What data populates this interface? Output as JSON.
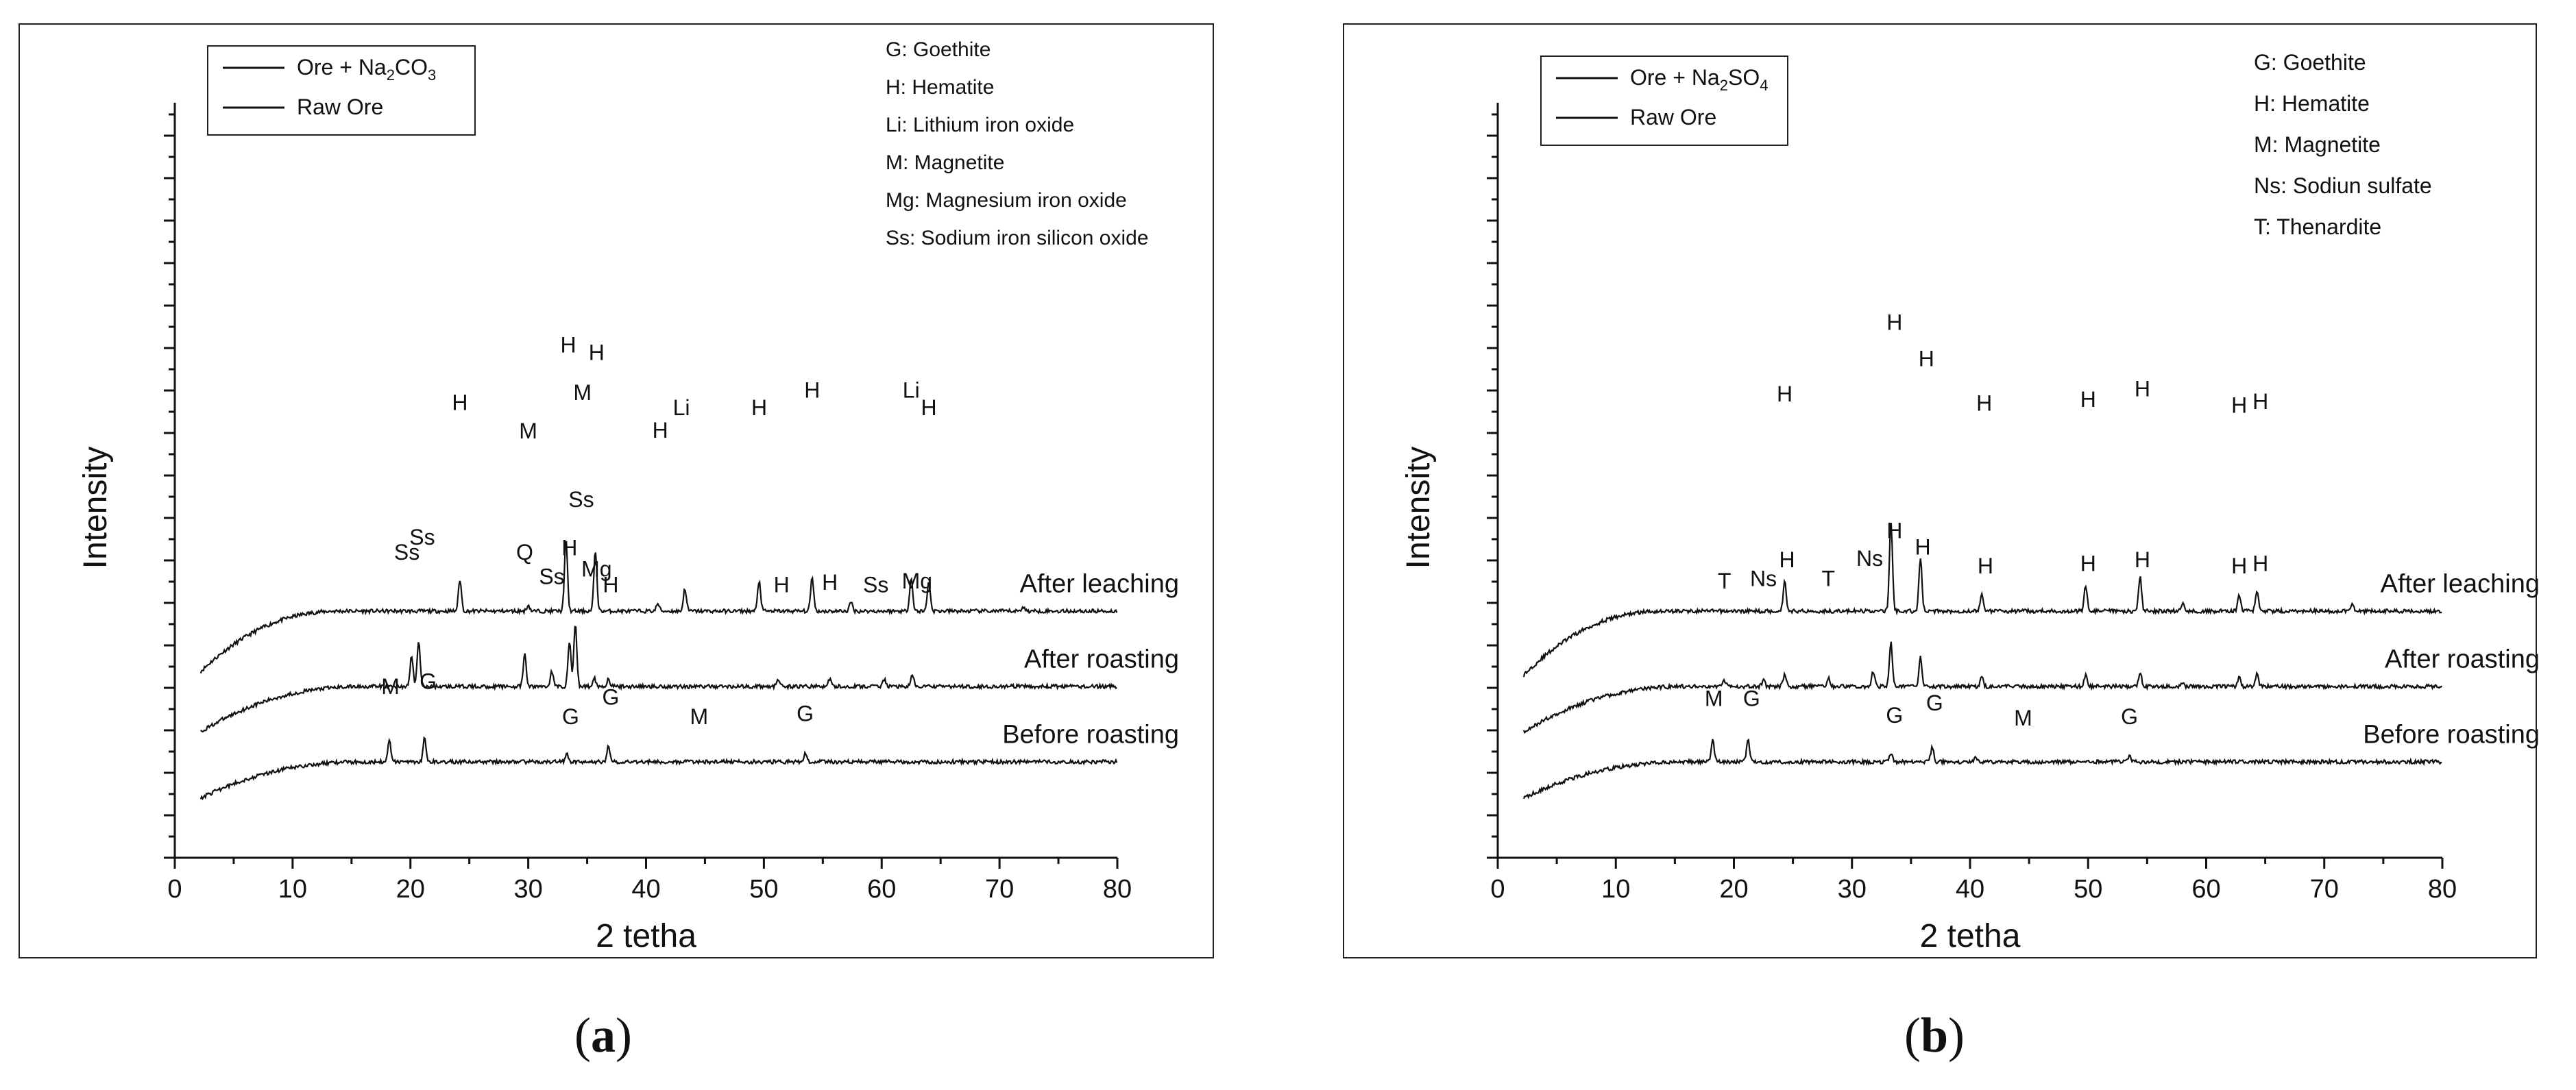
{
  "chart_data": [
    {
      "panel": "a",
      "type": "line",
      "xlabel": "2 tetha",
      "ylabel": "Intensity",
      "xlim": [
        0,
        80
      ],
      "xticks": [
        0,
        10,
        20,
        30,
        40,
        50,
        60,
        70,
        80
      ],
      "legend": {
        "position": "top-left",
        "entries": [
          {
            "text": "Ore + Na",
            "sub": "2",
            "tail": "CO",
            "sub2": "3"
          },
          {
            "text": "Raw Ore",
            "sub": "",
            "tail": "",
            "sub2": ""
          }
        ]
      },
      "phase_key": [
        "G: Goethite",
        "H: Hematite",
        "Li: Lithium iron oxide",
        "M: Magnetite",
        "Mg: Magnesium iron oxide",
        "Ss: Sodium iron silicon oxide"
      ],
      "series": [
        {
          "name": "After leaching",
          "baseline": 200,
          "x_start": 2.2,
          "rise_end": 14,
          "rise_amp": 80,
          "peaks": [
            [
              24.2,
              42
            ],
            [
              30.0,
              8
            ],
            [
              33.2,
              95
            ],
            [
              35.7,
              80
            ],
            [
              41.0,
              10
            ],
            [
              43.3,
              30
            ],
            [
              49.6,
              40
            ],
            [
              54.1,
              45
            ],
            [
              57.4,
              12
            ],
            [
              62.5,
              45
            ],
            [
              64.0,
              40
            ],
            [
              72.0,
              6
            ]
          ],
          "peak_labels": [
            {
              "label": "H",
              "x": 24.2,
              "y": 267
            },
            {
              "label": "M",
              "x": 30.0,
              "y": 229
            },
            {
              "label": "H",
              "x": 33.4,
              "y": 343
            },
            {
              "label": "M",
              "x": 34.6,
              "y": 280
            },
            {
              "label": "H",
              "x": 35.8,
              "y": 333
            },
            {
              "label": "H",
              "x": 41.2,
              "y": 230
            },
            {
              "label": "Li",
              "x": 43.0,
              "y": 260
            },
            {
              "label": "H",
              "x": 49.6,
              "y": 260
            },
            {
              "label": "H",
              "x": 54.1,
              "y": 283
            },
            {
              "label": "Li",
              "x": 62.5,
              "y": 283
            },
            {
              "label": "H",
              "x": 64.0,
              "y": 260
            }
          ],
          "curve_label": "After leaching"
        },
        {
          "name": "After roasting",
          "baseline": 100,
          "x_start": 2.2,
          "rise_end": 16,
          "rise_amp": 60,
          "peaks": [
            [
              20.1,
              40
            ],
            [
              20.7,
              60
            ],
            [
              29.7,
              42
            ],
            [
              32.0,
              20
            ],
            [
              33.5,
              60
            ],
            [
              34.0,
              82
            ],
            [
              35.6,
              12
            ],
            [
              36.8,
              10
            ],
            [
              51.2,
              8
            ],
            [
              55.6,
              10
            ],
            [
              60.2,
              10
            ],
            [
              62.6,
              15
            ]
          ],
          "peak_labels": [
            {
              "label": "Ss",
              "x": 19.7,
              "y": 168
            },
            {
              "label": "Ss",
              "x": 21.0,
              "y": 188
            },
            {
              "label": "Q",
              "x": 29.7,
              "y": 168
            },
            {
              "label": "Ss",
              "x": 32.0,
              "y": 136
            },
            {
              "label": "H",
              "x": 33.5,
              "y": 174
            },
            {
              "label": "Ss",
              "x": 34.5,
              "y": 238
            },
            {
              "label": "Mg",
              "x": 35.8,
              "y": 146
            },
            {
              "label": "H",
              "x": 37.0,
              "y": 125
            },
            {
              "label": "H",
              "x": 51.5,
              "y": 125
            },
            {
              "label": "H",
              "x": 55.6,
              "y": 128
            },
            {
              "label": "Ss",
              "x": 59.5,
              "y": 125
            },
            {
              "label": "Mg",
              "x": 63.0,
              "y": 130
            }
          ],
          "curve_label": "After roasting"
        },
        {
          "name": "Before roasting",
          "baseline": 0,
          "x_start": 2.2,
          "rise_end": 16,
          "rise_amp": 48,
          "peaks": [
            [
              18.2,
              30
            ],
            [
              21.2,
              32
            ],
            [
              33.3,
              10
            ],
            [
              36.8,
              20
            ],
            [
              44.5,
              0
            ],
            [
              53.5,
              10
            ]
          ],
          "peak_labels": [
            {
              "label": "M",
              "x": 18.3,
              "y": 90
            },
            {
              "label": "G",
              "x": 21.5,
              "y": 97
            },
            {
              "label": "G",
              "x": 33.6,
              "y": 50
            },
            {
              "label": "G",
              "x": 37.0,
              "y": 76
            },
            {
              "label": "M",
              "x": 44.5,
              "y": 50
            },
            {
              "label": "G",
              "x": 53.5,
              "y": 54
            }
          ],
          "curve_label": "Before roasting"
        }
      ]
    },
    {
      "panel": "b",
      "type": "line",
      "xlabel": "2 tetha",
      "ylabel": "Intensity",
      "xlim": [
        0,
        80
      ],
      "xticks": [
        0,
        10,
        20,
        30,
        40,
        50,
        60,
        70,
        80
      ],
      "legend": {
        "position": "top-left",
        "entries": [
          {
            "text": "Ore + Na",
            "sub": "2",
            "tail": "SO",
            "sub2": "4"
          },
          {
            "text": "Raw Ore",
            "sub": "",
            "tail": "",
            "sub2": ""
          }
        ]
      },
      "phase_key": [
        "G: Goethite",
        "H: Hematite",
        "M: Magnetite",
        "Ns: Sodiun sulfate",
        "T: Thenardite"
      ],
      "series": [
        {
          "name": "After leaching",
          "baseline": 200,
          "x_start": 2.2,
          "rise_end": 14,
          "rise_amp": 85,
          "peaks": [
            [
              24.3,
              40
            ],
            [
              33.3,
              120
            ],
            [
              35.8,
              70
            ],
            [
              41.0,
              24
            ],
            [
              49.8,
              34
            ],
            [
              54.4,
              46
            ],
            [
              58.0,
              10
            ],
            [
              62.8,
              22
            ],
            [
              64.3,
              28
            ],
            [
              72.4,
              8
            ]
          ],
          "peak_labels": [
            {
              "label": "H",
              "x": 24.3,
              "y": 278
            },
            {
              "label": "H",
              "x": 33.6,
              "y": 373
            },
            {
              "label": "H",
              "x": 36.3,
              "y": 325
            },
            {
              "label": "H",
              "x": 41.2,
              "y": 266
            },
            {
              "label": "H",
              "x": 50.0,
              "y": 271
            },
            {
              "label": "H",
              "x": 54.6,
              "y": 285
            },
            {
              "label": "H",
              "x": 62.8,
              "y": 263
            },
            {
              "label": "H",
              "x": 64.6,
              "y": 268
            }
          ],
          "curve_label": "After leaching"
        },
        {
          "name": "After roasting",
          "baseline": 100,
          "x_start": 2.2,
          "rise_end": 16,
          "rise_amp": 60,
          "peaks": [
            [
              19.2,
              8
            ],
            [
              22.5,
              8
            ],
            [
              24.3,
              16
            ],
            [
              28.0,
              12
            ],
            [
              31.8,
              20
            ],
            [
              33.3,
              58
            ],
            [
              35.8,
              40
            ],
            [
              41.0,
              12
            ],
            [
              49.8,
              16
            ],
            [
              54.4,
              20
            ],
            [
              58.0,
              5
            ],
            [
              62.8,
              12
            ],
            [
              64.3,
              16
            ]
          ],
          "peak_labels": [
            {
              "label": "T",
              "x": 19.2,
              "y": 130
            },
            {
              "label": "Ns",
              "x": 22.5,
              "y": 133
            },
            {
              "label": "H",
              "x": 24.5,
              "y": 158
            },
            {
              "label": "T",
              "x": 28.0,
              "y": 133
            },
            {
              "label": "Ns",
              "x": 31.5,
              "y": 160
            },
            {
              "label": "H",
              "x": 33.6,
              "y": 197
            },
            {
              "label": "H",
              "x": 36.0,
              "y": 175
            },
            {
              "label": "H",
              "x": 41.3,
              "y": 150
            },
            {
              "label": "H",
              "x": 50.0,
              "y": 153
            },
            {
              "label": "H",
              "x": 54.6,
              "y": 158
            },
            {
              "label": "H",
              "x": 62.8,
              "y": 150
            },
            {
              "label": "H",
              "x": 64.6,
              "y": 153
            }
          ],
          "curve_label": "After roasting"
        },
        {
          "name": "Before roasting",
          "baseline": 0,
          "x_start": 2.2,
          "rise_end": 16,
          "rise_amp": 48,
          "peaks": [
            [
              18.2,
              30
            ],
            [
              21.2,
              30
            ],
            [
              33.3,
              10
            ],
            [
              36.8,
              20
            ],
            [
              40.5,
              5
            ],
            [
              53.5,
              8
            ]
          ],
          "peak_labels": [
            {
              "label": "M",
              "x": 18.3,
              "y": 74
            },
            {
              "label": "G",
              "x": 21.5,
              "y": 74
            },
            {
              "label": "G",
              "x": 33.6,
              "y": 52
            },
            {
              "label": "G",
              "x": 37.0,
              "y": 68
            },
            {
              "label": "M",
              "x": 44.5,
              "y": 48
            },
            {
              "label": "G",
              "x": 53.5,
              "y": 50
            }
          ],
          "curve_label": "Before roasting"
        }
      ]
    }
  ],
  "panel_labels": {
    "a": "a",
    "b": "b"
  }
}
